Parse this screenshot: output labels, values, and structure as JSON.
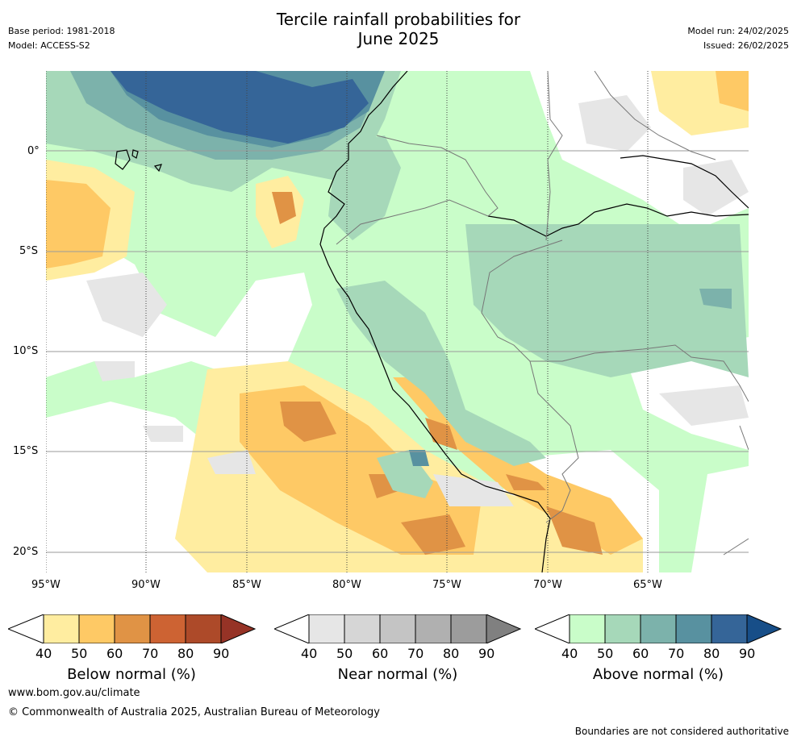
{
  "header": {
    "title_line1": "Tercile rainfall probabilities for",
    "title_line2": "June 2025",
    "base_period": "Base period: 1981-2018",
    "model": "Model: ACCESS-S2",
    "model_run": "Model run: 24/02/2025",
    "issued": "Issued: 26/02/2025"
  },
  "map": {
    "lat_labels": [
      "0°",
      "5°S",
      "10°S",
      "15°S",
      "20°S"
    ],
    "lon_labels": [
      "95°W",
      "90°W",
      "85°W",
      "80°W",
      "75°W",
      "70°W",
      "65°W"
    ]
  },
  "colorbars": [
    {
      "title": "Below normal (%)",
      "ticks": [
        "40",
        "50",
        "60",
        "70",
        "80",
        "90"
      ],
      "colors": [
        "#ffeda0",
        "#fec965",
        "#e09345",
        "#cd6333",
        "#ad4a29",
        "#963326"
      ]
    },
    {
      "title": "Near normal (%)",
      "ticks": [
        "40",
        "50",
        "60",
        "70",
        "80",
        "90"
      ],
      "colors": [
        "#e6e6e6",
        "#d6d6d6",
        "#c4c4c4",
        "#b0b0b0",
        "#9c9c9c",
        "#808080"
      ]
    },
    {
      "title": "Above normal (%)",
      "ticks": [
        "40",
        "50",
        "60",
        "70",
        "80",
        "90"
      ],
      "colors": [
        "#c9fdc9",
        "#a6d8b9",
        "#7cb2ab",
        "#5891a0",
        "#356598",
        "#174e88"
      ]
    }
  ],
  "footer": {
    "url": "www.bom.gov.au/climate",
    "copyright": "© Commonwealth of Australia 2025, Australian Bureau of Meteorology",
    "disclaimer": "Boundaries are not considered authoritative"
  }
}
